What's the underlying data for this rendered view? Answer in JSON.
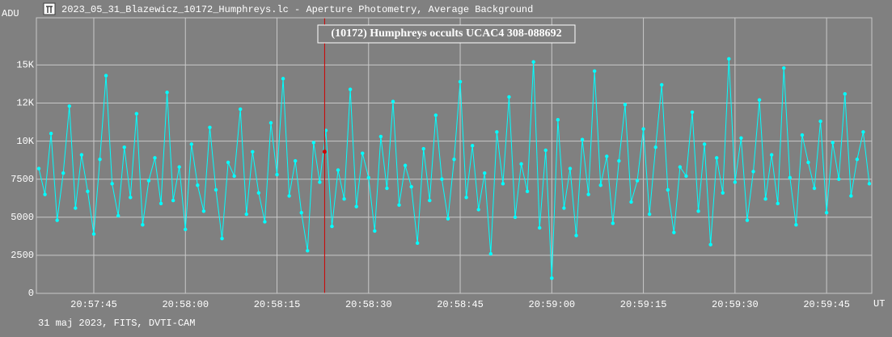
{
  "chart_data": {
    "type": "line",
    "header": "2023_05_31_Blazewicz_10172_Humphreys.lc - Aperture Photometry, Average Background",
    "title": "(10172) Humphreys occults UCAC4 308-088692",
    "ylabel": "ADU",
    "xlabel": "UT",
    "footer": "31 maj 2023, FITS, DVTI-CAM",
    "xlim": [
      35.6,
      172.4
    ],
    "ylim": [
      0,
      18100
    ],
    "xticks": [
      {
        "value": 45,
        "label": "20:57:45"
      },
      {
        "value": 60,
        "label": "20:58:00"
      },
      {
        "value": 75,
        "label": "20:58:15"
      },
      {
        "value": 90,
        "label": "20:58:30"
      },
      {
        "value": 105,
        "label": "20:58:45"
      },
      {
        "value": 120,
        "label": "20:59:00"
      },
      {
        "value": 135,
        "label": "20:59:15"
      },
      {
        "value": 150,
        "label": "20:59:30"
      },
      {
        "value": 165,
        "label": "20:59:45"
      }
    ],
    "yticks": [
      0,
      2500,
      5000,
      7500,
      {
        "value": 10000,
        "label": "10K"
      },
      {
        "value": 12500,
        "label": "12K"
      },
      {
        "value": 15000,
        "label": "15K"
      }
    ],
    "grid": true,
    "event": {
      "x": 82.8,
      "value": 9300,
      "color": "#d00000"
    },
    "series": [
      {
        "color": "#00ffff",
        "x": [
          36,
          37,
          38,
          39,
          40,
          41,
          42,
          43,
          44,
          45,
          46,
          47,
          48,
          49,
          50,
          51,
          52,
          53,
          54,
          55,
          56,
          57,
          58,
          59,
          60,
          61,
          62,
          63,
          64,
          65,
          66,
          67,
          68,
          69,
          70,
          71,
          72,
          73,
          74,
          75,
          76,
          77,
          78,
          79,
          80,
          81,
          82,
          83,
          84,
          85,
          86,
          87,
          88,
          89,
          90,
          91,
          92,
          93,
          94,
          95,
          96,
          97,
          98,
          99,
          100,
          101,
          102,
          103,
          104,
          105,
          106,
          107,
          108,
          109,
          110,
          111,
          112,
          113,
          114,
          115,
          116,
          117,
          118,
          119,
          120,
          121,
          122,
          123,
          124,
          125,
          126,
          127,
          128,
          129,
          130,
          131,
          132,
          133,
          134,
          135,
          136,
          137,
          138,
          139,
          140,
          141,
          142,
          143,
          144,
          145,
          146,
          147,
          148,
          149,
          150,
          151,
          152,
          153,
          154,
          155,
          156,
          157,
          158,
          159,
          160,
          161,
          162,
          163,
          164,
          165,
          166,
          167,
          168,
          169,
          170,
          171,
          172
        ],
        "values": [
          8200,
          6500,
          10500,
          4800,
          7900,
          12300,
          5600,
          9100,
          6700,
          3900,
          8800,
          14300,
          7200,
          5100,
          9600,
          6300,
          11800,
          4500,
          7400,
          8900,
          5900,
          13200,
          6100,
          8300,
          4200,
          9800,
          7100,
          5400,
          10900,
          6800,
          3600,
          8600,
          7700,
          12100,
          5200,
          9300,
          6600,
          4700,
          11200,
          7800,
          14100,
          6400,
          8700,
          5300,
          2800,
          9900,
          7300,
          10700,
          4400,
          8100,
          6200,
          13400,
          5700,
          9200,
          7600,
          4100,
          10300,
          6900,
          12600,
          5800,
          8400,
          7000,
          3300,
          9500,
          6100,
          11700,
          7500,
          4900,
          8800,
          13900,
          6300,
          9700,
          5500,
          7900,
          2600,
          10600,
          7200,
          12900,
          5000,
          8500,
          6700,
          15200,
          4300,
          9400,
          1000,
          11400,
          5600,
          8200,
          3800,
          10100,
          6500,
          14600,
          7100,
          9000,
          4600,
          8700,
          12400,
          6000,
          7400,
          10800,
          5200,
          9600,
          13700,
          6800,
          4000,
          8300,
          7700,
          11900,
          5400,
          9800,
          3200,
          8900,
          6600,
          15400,
          7300,
          10200,
          4800,
          8000,
          12700,
          6200,
          9100,
          5900,
          14800,
          7600,
          4500,
          10400,
          8600,
          6900,
          11300,
          5300,
          9900,
          7500,
          13100,
          6400,
          8800,
          10600,
          7200
        ]
      }
    ]
  }
}
